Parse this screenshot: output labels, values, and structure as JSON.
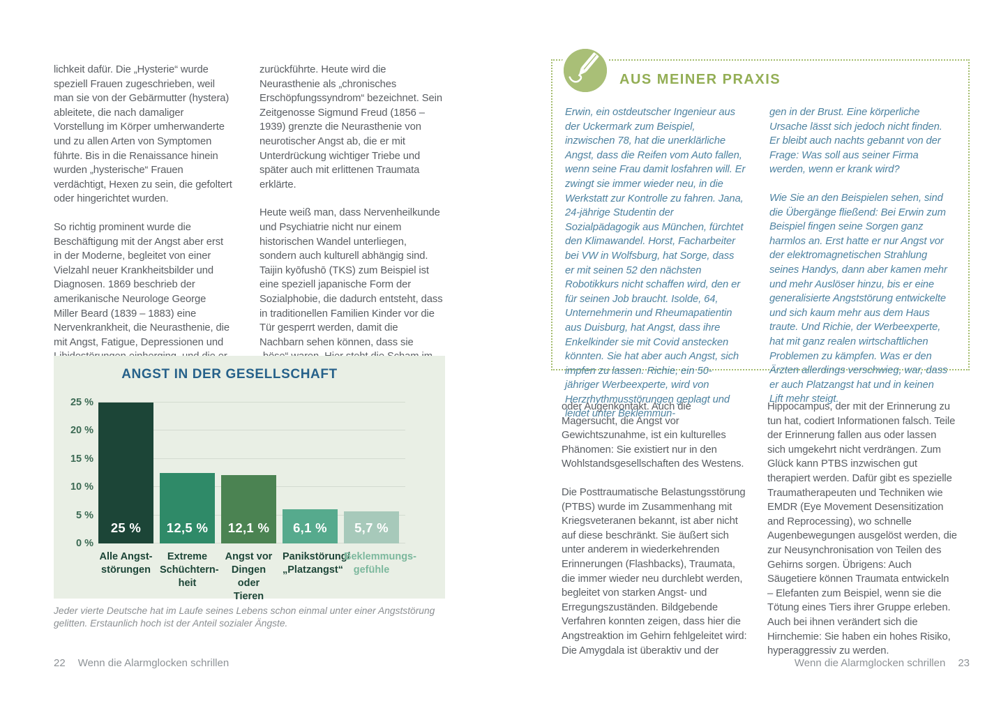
{
  "colors": {
    "page_background": "#ffffff",
    "body_text": "#595d62",
    "caption_text": "#8b8f92",
    "footer_text": "#8d9296",
    "chart_background": "#e9efe5",
    "chart_title": "#26618a",
    "chart_grid": "#d3dbd0",
    "chart_tick_label": "#3c6a54",
    "bar_value_text": "#ffffff",
    "praxis_border": "#a4bc6d",
    "praxis_title": "#93ae55",
    "praxis_icon_bg": "#a9bf77",
    "praxis_text": "#4d82a0"
  },
  "left_page": {
    "column1": [
      "lichkeit dafür. Die „Hysterie“ wurde speziell Frauen zugeschrieben, weil man sie von der Gebärmutter (hystera) ableitete, die nach damaliger Vorstellung im Körper umherwanderte und zu allen Arten von Symptomen führte. Bis in die Renaissance hinein wurden „hysterische“ Frauen verdächtigt, Hexen zu sein, die gefoltert oder hingerichtet wurden.",
      "So richtig prominent wurde die Beschäftigung mit der Angst aber erst in der Moderne, begleitet von einer Vielzahl neuer Krankheitsbilder und Diagnosen. 1869 beschrieb der amerikanische Neurologe George Miller Beard (1839 – 1883) eine Nervenkrankheit, die Neurasthenie, die mit Angst, Fatigue, Depressionen und Libidostörungen einherging, und die er auf den Stress der Verstädterung und andere zivilisatorische Neuerungen"
    ],
    "column2": [
      "zurückführte. Heute wird die Neurasthenie als „chronisches Erschöpfungssyndrom“ bezeichnet. Sein Zeitgenosse Sigmund Freud (1856 – 1939) grenzte die Neurasthenie von neurotischer Angst ab, die er mit Unterdrückung wichtiger Triebe und später auch mit erlittenen Traumata erklärte.",
      "Heute weiß man, dass Nervenheilkunde und Psychiatrie nicht nur einem historischen Wandel unterliegen, sondern auch kulturell abhängig sind. Taijin kyōfushō (TKS) zum Beispiel ist eine speziell japanische Form der Sozialphobie, die dadurch entsteht, dass in traditionellen Familien Kinder vor die Tür gesperrt werden, damit die Nachbarn sehen können, dass sie „böse“ waren. Hier steht die Scham im Mittelpunkt, so gibt es auch heftige Angst vor Erröten, Körpergeruch"
    ],
    "caption": "Jeder vierte Deutsche hat im Laufe seines Lebens schon einmal unter einer Angststörung gelitten. Erstaunlich hoch ist der Anteil sozialer Ängste.",
    "footer": {
      "page_number": "22",
      "chapter_title": "Wenn die Alarmglocken schrillen"
    }
  },
  "right_page": {
    "praxis_box": {
      "icon": "pencil-icon",
      "title": "AUS MEINER PRAXIS",
      "column1": [
        "Erwin, ein ostdeutscher Ingenieur aus der Uckermark zum Beispiel, inzwischen 78, hat die unerklärliche Angst, dass die Reifen vom Auto fallen, wenn seine Frau damit losfahren will. Er zwingt sie immer wieder neu, in die Werkstatt zur Kontrolle zu fahren. Jana, 24-jährige Studentin der Sozialpädagogik aus München, fürchtet den Klimawandel. Horst, Facharbeiter bei VW in Wolfsburg, hat Sorge, dass er mit seinen 52 den nächsten Robotikkurs nicht schaffen wird, den er für seinen Job braucht. Isolde, 64, Unternehmerin und Rheumapatientin aus Duisburg, hat Angst, dass ihre Enkelkinder sie mit Covid anstecken könnten. Sie hat aber auch Angst, sich impfen zu lassen. Richie, ein 50-jähriger Werbeexperte, wird von Herzrhythmusstörungen geplagt und leidet unter Beklemmun-"
      ],
      "column2": [
        "gen in der Brust. Eine körperliche Ursache lässt sich jedoch nicht finden. Er bleibt auch nachts gebannt von der Frage: Was soll aus seiner Firma werden, wenn er krank wird?",
        "Wie Sie an den Beispielen sehen, sind die Übergänge fließend: Bei Erwin zum Beispiel fingen seine Sorgen ganz harmlos an. Erst hatte er nur Angst vor der elektromagnetischen Strahlung seines Handys, dann aber kamen mehr und mehr Auslöser hinzu, bis er eine generalisierte Angststörung entwickelte und sich kaum mehr aus dem Haus traute. Und Richie, der Werbeexperte, hat mit ganz realen wirtschaftlichen Problemen zu kämpfen. Was er den Ärzten allerdings verschwieg, war, dass er auch Platzangst hat und in keinen Lift mehr steigt."
      ]
    },
    "column1": [
      "oder Augenkontakt. Auch die Magersucht, die Angst vor Gewichtszunahme, ist ein kulturelles Phänomen: Sie existiert nur in den Wohlstandsgesellschaften des Westens.",
      "Die Posttraumatische Belastungsstörung (PTBS) wurde im Zusammenhang mit Kriegsveteranen bekannt, ist aber nicht auf diese beschränkt. Sie äußert sich unter anderem in wiederkehrenden Erinnerungen (Flashbacks), Traumata, die immer wieder neu durchlebt werden, begleitet von starken Angst- und Erregungszuständen. Bildgebende Verfahren konnten zeigen, dass hier die Angstreaktion im Gehirn fehlgeleitet wird: Die Amygdala ist überaktiv und der"
    ],
    "column2": [
      "Hippocampus, der mit der Erinnerung zu tun hat, codiert Informationen falsch. Teile der Erinnerung fallen aus oder lassen sich umgekehrt nicht verdrängen. Zum Glück kann PTBS inzwischen gut therapiert werden. Dafür gibt es spezielle Traumatherapeuten und Techniken wie EMDR (Eye Movement Desensitization and Reprocessing), wo schnelle Augenbewegungen ausgelöst werden, die zur Neusynchronisation von Teilen des Gehirns sorgen. Übrigens: Auch Säugetiere können Traumata entwickeln – Elefanten zum Beispiel, wenn sie die Tötung eines Tiers ihrer Gruppe erleben. Auch bei ihnen verändert sich die Hirnchemie: Sie haben ein hohes Risiko, hyperaggressiv zu werden."
    ],
    "footer": {
      "chapter_title": "Wenn die Alarmglocken schrillen",
      "page_number": "23"
    }
  },
  "chart_data": {
    "type": "bar",
    "title": "ANGST IN DER GESELLSCHAFT",
    "categories": [
      "Alle Angst-\nstörungen",
      "Extreme\nSchüchtern-\nheit",
      "Angst vor\nDingen oder\nTieren",
      "Panikstörung/\n„Platzangst“",
      "Beklemmungs-\ngefühle"
    ],
    "values": [
      25,
      12.5,
      12.1,
      6.1,
      5.7
    ],
    "value_labels": [
      "25 %",
      "12,5 %",
      "12,1 %",
      "6,1 %",
      "5,7 %"
    ],
    "xlabel": "",
    "ylabel": "",
    "ylim": [
      0,
      25
    ],
    "y_ticks": [
      0,
      5,
      10,
      15,
      20,
      25
    ],
    "y_tick_labels": [
      "0 %",
      "5 %",
      "10 %",
      "15 %",
      "20 %",
      "25 %"
    ],
    "grid": true,
    "legend": false,
    "bar_colors": [
      "#1c4537",
      "#2f8a68",
      "#4b8352",
      "#56aa8d",
      "#a7c9ba"
    ],
    "category_label_colors": [
      "#1c4537",
      "#1c4537",
      "#1c4537",
      "#1c4537",
      "#7cb89d"
    ]
  }
}
